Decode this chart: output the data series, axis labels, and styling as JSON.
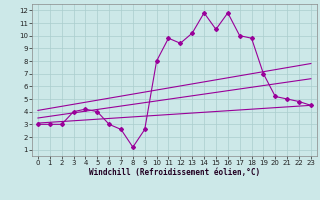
{
  "x": [
    0,
    1,
    2,
    3,
    4,
    5,
    6,
    7,
    8,
    9,
    10,
    11,
    12,
    13,
    14,
    15,
    16,
    17,
    18,
    19,
    20,
    21,
    22,
    23
  ],
  "line1": [
    3.0,
    3.0,
    3.0,
    4.0,
    4.2,
    4.0,
    3.0,
    2.6,
    1.2,
    2.6,
    8.0,
    9.8,
    9.4,
    10.2,
    11.8,
    10.5,
    11.8,
    10.0,
    9.8,
    7.0,
    5.2,
    5.0,
    4.8,
    4.5
  ],
  "line2": [
    [
      0,
      4.1
    ],
    [
      23,
      7.8
    ]
  ],
  "line3": [
    [
      0,
      3.5
    ],
    [
      23,
      6.6
    ]
  ],
  "line4": [
    [
      0,
      3.1
    ],
    [
      23,
      4.5
    ]
  ],
  "line_color": "#990099",
  "bg_color": "#cce8e8",
  "grid_color": "#aacece",
  "xlabel": "Windchill (Refroidissement éolien,°C)",
  "xlim": [
    -0.5,
    23.5
  ],
  "ylim": [
    0.5,
    12.5
  ],
  "xticks": [
    0,
    1,
    2,
    3,
    4,
    5,
    6,
    7,
    8,
    9,
    10,
    11,
    12,
    13,
    14,
    15,
    16,
    17,
    18,
    19,
    20,
    21,
    22,
    23
  ],
  "yticks": [
    1,
    2,
    3,
    4,
    5,
    6,
    7,
    8,
    9,
    10,
    11,
    12
  ],
  "marker": "D",
  "markersize": 2.0,
  "linewidth": 0.8,
  "tick_fontsize": 5.0,
  "xlabel_fontsize": 5.5
}
